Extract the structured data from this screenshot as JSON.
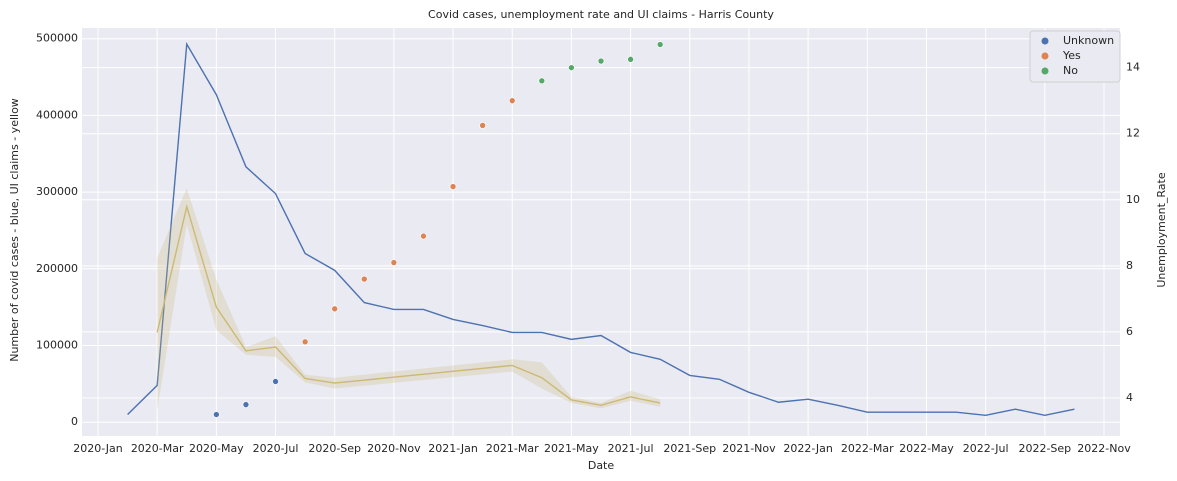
{
  "chart_data": {
    "type": "line",
    "title": "Covid cases, unemployment rate and UI claims - Harris County",
    "x_label": "Date",
    "y_label": "Number of covid cases - blue, UI claims - yellow",
    "y2_label": "Unemployment_Rate",
    "xlim": [
      "2020-01",
      "2022-11"
    ],
    "xticks": [
      {
        "value": "2020-01",
        "label": "2020-Jan"
      },
      {
        "value": "2020-03",
        "label": "2020-Mar"
      },
      {
        "value": "2020-05",
        "label": "2020-May"
      },
      {
        "value": "2020-07",
        "label": "2020-Jul"
      },
      {
        "value": "2020-09",
        "label": "2020-Sep"
      },
      {
        "value": "2020-11",
        "label": "2020-Nov"
      },
      {
        "value": "2021-01",
        "label": "2021-Jan"
      },
      {
        "value": "2021-03",
        "label": "2021-Mar"
      },
      {
        "value": "2021-05",
        "label": "2021-May"
      },
      {
        "value": "2021-07",
        "label": "2021-Jul"
      },
      {
        "value": "2021-09",
        "label": "2021-Sep"
      },
      {
        "value": "2021-11",
        "label": "2021-Nov"
      },
      {
        "value": "2022-01",
        "label": "2022-Jan"
      },
      {
        "value": "2022-03",
        "label": "2022-Mar"
      },
      {
        "value": "2022-05",
        "label": "2022-May"
      },
      {
        "value": "2022-07",
        "label": "2022-Jul"
      },
      {
        "value": "2022-09",
        "label": "2022-Sep"
      },
      {
        "value": "2022-11",
        "label": "2022-Nov"
      }
    ],
    "ylim": [
      -18000,
      514000
    ],
    "yticks": [
      0,
      100000,
      200000,
      300000,
      400000,
      500000
    ],
    "y2lim": [
      2.85,
      15.2
    ],
    "y2ticks": [
      4,
      6,
      8,
      10,
      12,
      14
    ],
    "grid": true,
    "legend": "upper right",
    "series": [
      {
        "type": "line",
        "color": "#4c72b0",
        "x": [
          "2020-02",
          "2020-03",
          "2020-04",
          "2020-05",
          "2020-06",
          "2020-07",
          "2020-08",
          "2020-09",
          "2020-10",
          "2020-11",
          "2020-12",
          "2021-01",
          "2021-02",
          "2021-03",
          "2021-04",
          "2021-05",
          "2021-06",
          "2021-07",
          "2021-08",
          "2021-09",
          "2021-10",
          "2021-11",
          "2021-12",
          "2022-01",
          "2022-02",
          "2022-03",
          "2022-04",
          "2022-05",
          "2022-06",
          "2022-07",
          "2022-08",
          "2022-09",
          "2022-10"
        ],
        "values": [
          10000,
          48000,
          493000,
          427000,
          333000,
          298000,
          220000,
          198000,
          156000,
          147000,
          147000,
          134000,
          126000,
          117000,
          117000,
          108000,
          113000,
          91000,
          82000,
          61000,
          56000,
          39000,
          26000,
          30000,
          22000,
          13000,
          13000,
          13000,
          13000,
          9000,
          17000,
          9000,
          17000
        ]
      },
      {
        "type": "line",
        "color": "#ccb974",
        "x": [
          "2020-03",
          "2020-04",
          "2020-05",
          "2020-06",
          "2020-07",
          "2020-08",
          "2020-09",
          "2021-03",
          "2021-04",
          "2021-05",
          "2021-06",
          "2021-07",
          "2021-08"
        ],
        "values": [
          117000,
          281000,
          150000,
          93000,
          98000,
          57000,
          51000,
          74000,
          58000,
          29000,
          22000,
          33000,
          25000
        ],
        "lower": [
          15000,
          258000,
          120000,
          88000,
          85000,
          52000,
          44000,
          66000,
          44000,
          25000,
          18000,
          28000,
          20000
        ],
        "upper": [
          214000,
          305000,
          186000,
          98000,
          112000,
          62000,
          58000,
          82000,
          78000,
          33000,
          25000,
          41000,
          30000
        ]
      },
      {
        "type": "scatter",
        "name": "Unknown",
        "color": "#4c72b0",
        "axis": "y2",
        "x": [
          "2020-05",
          "2020-06",
          "2020-07"
        ],
        "values": [
          3.5,
          3.8,
          4.5
        ]
      },
      {
        "type": "scatter",
        "name": "Yes",
        "color": "#dd8452",
        "axis": "y2",
        "x": [
          "2020-08",
          "2020-09",
          "2020-10",
          "2020-11",
          "2020-12",
          "2021-01",
          "2021-02",
          "2021-03"
        ],
        "values": [
          5.7,
          6.7,
          7.6,
          8.1,
          8.9,
          10.4,
          12.25,
          13.0
        ]
      },
      {
        "type": "scatter",
        "name": "No",
        "color": "#55a868",
        "axis": "y2",
        "x": [
          "2021-04",
          "2021-05",
          "2021-06",
          "2021-07",
          "2021-08"
        ],
        "values": [
          13.6,
          14.0,
          14.2,
          14.25,
          14.7
        ]
      }
    ]
  }
}
